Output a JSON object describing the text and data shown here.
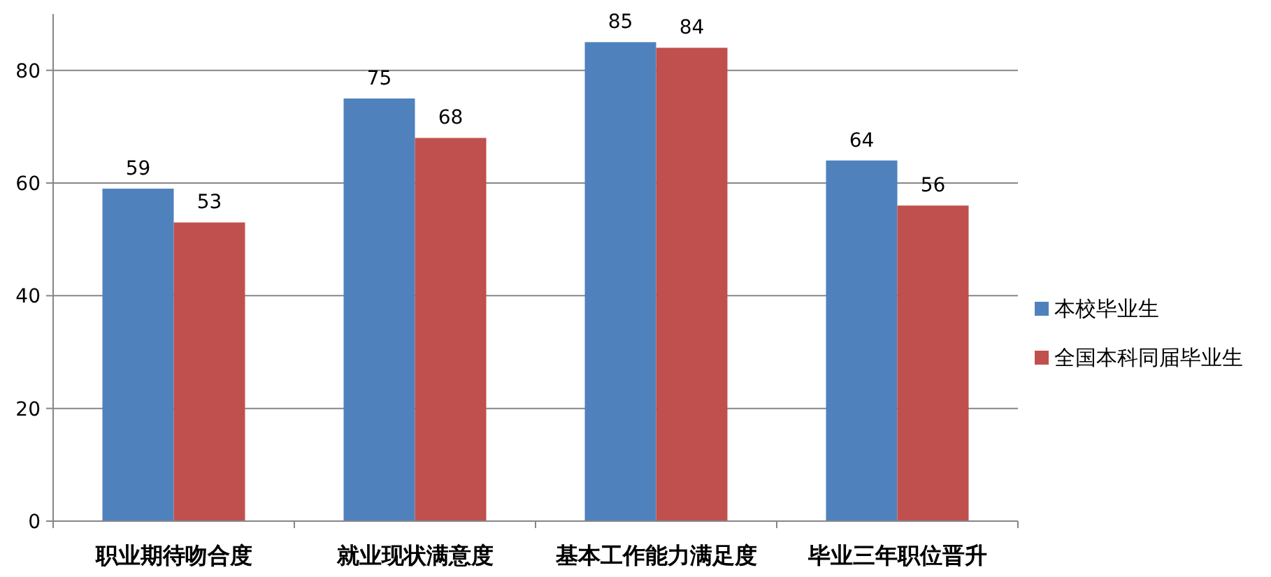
{
  "chart_data": {
    "type": "bar",
    "categories": [
      "职业期待吻合度",
      "就业现状满意度",
      "基本工作能力满足度",
      "毕业三年职位晋升"
    ],
    "series": [
      {
        "name": "本校毕业生",
        "color": "#4f81bd",
        "values": [
          59,
          75,
          85,
          64
        ]
      },
      {
        "name": "全国本科同届毕业生",
        "color": "#c0504d",
        "values": [
          53,
          68,
          84,
          56
        ]
      }
    ],
    "ylim": [
      0,
      90
    ],
    "yticks": [
      0,
      20,
      40,
      60,
      80
    ],
    "grid": "y",
    "legend": "right",
    "data_labels": true
  }
}
